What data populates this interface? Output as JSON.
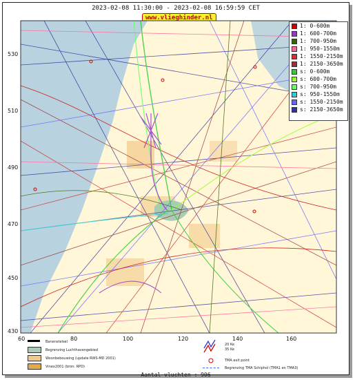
{
  "header": {
    "title": "2023-02-08 11:30:00 - 2023-02-08 16:59:59 CET",
    "url_badge": "www.vlieghinder.nl"
  },
  "axes": {
    "x_ticks": [
      "60",
      "80",
      "100",
      "120",
      "140",
      "160"
    ],
    "y_ticks": [
      "530",
      "510",
      "490",
      "470",
      "450",
      "430"
    ]
  },
  "legend": [
    {
      "label": "1: 0-600m",
      "color": "#cc0000"
    },
    {
      "label": "1: 600-700m",
      "color": "#9933cc"
    },
    {
      "label": "1: 700-950m",
      "color": "#336600"
    },
    {
      "label": "1: 950-1550m",
      "color": "#ff6699"
    },
    {
      "label": "1: 1550-2150m",
      "color": "#cc3333"
    },
    {
      "label": "1: 2150-3650m",
      "color": "#993333"
    },
    {
      "label": "s: 0-600m",
      "color": "#33cc33"
    },
    {
      "label": "s: 600-700m",
      "color": "#99ff33"
    },
    {
      "label": "s: 700-950m",
      "color": "#66ff66"
    },
    {
      "label": "s: 950-1550m",
      "color": "#33cccc"
    },
    {
      "label": "s: 1550-2150m",
      "color": "#6666ff"
    },
    {
      "label": "s: 2150-3650m",
      "color": "#333399"
    }
  ],
  "bottom_legend": {
    "runway": "Banenstelsel",
    "airport_boundary": "Begrenzing Luchthavengebied",
    "housing": "Woonbebouwing (update RWS-MD 2001)",
    "vinex": "Vinex2001 (bron: RPD)",
    "ke": "20 Ke\n35 Ke",
    "ke1": "20 Ke",
    "ke2": "35 Ke",
    "tma_exit": "TMA exit point",
    "tma_boundary": "Begrenzing TMA Schiphol  (TMA1 en TMA3)"
  },
  "footer": {
    "count": "Aantal vluchten : 906"
  },
  "colors": {
    "sea": "#b9d2df",
    "land": "#fff7d8",
    "urban": "#f2c98c"
  }
}
